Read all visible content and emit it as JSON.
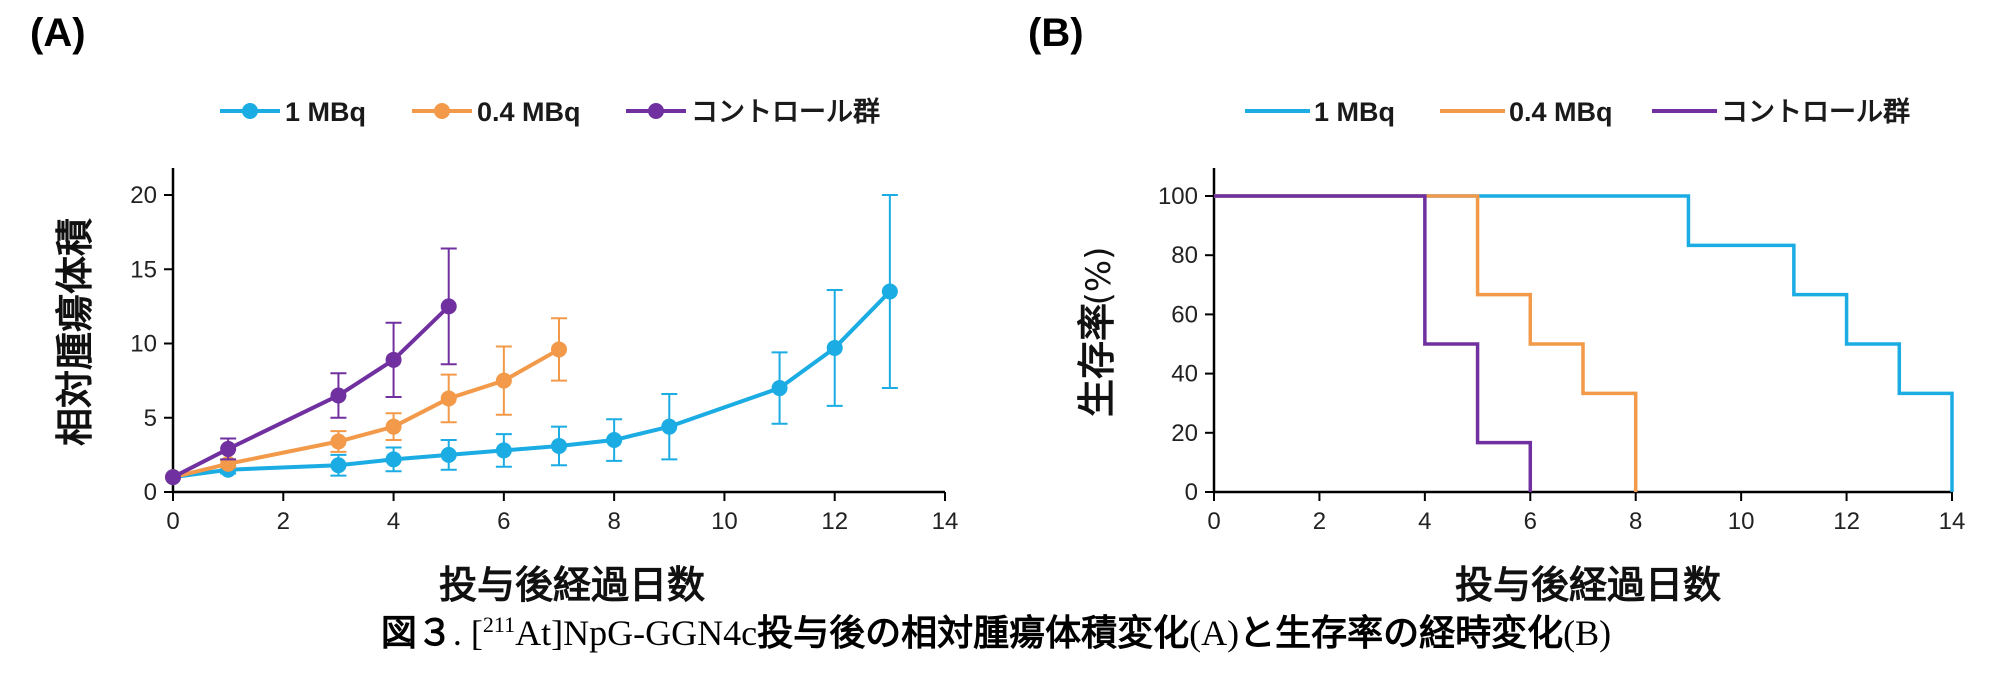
{
  "panel_a_label": "(A)",
  "panel_b_label": "(B)",
  "colors": {
    "1mbq": "#1aace3",
    "0_4mbq": "#f2994a",
    "control": "#7030a0"
  },
  "caption": {
    "fig_label": "図３",
    "dot": ".",
    "compound_pre": "[",
    "compound_sup": "211",
    "compound_post": "At]NpG-GGN4c",
    "text1": "投与後の相対腫瘍体積変化",
    "a": "(A)",
    "text2": "と生存率の経時変化",
    "b": "(B)"
  },
  "chart_data": [
    {
      "type": "line",
      "panel": "(A)",
      "xlabel": "投与後経過日数",
      "ylabel": "相対腫瘍体積",
      "xlim": [
        0,
        14
      ],
      "ylim": [
        0,
        20
      ],
      "xticks": [
        0,
        2,
        4,
        6,
        8,
        10,
        12,
        14
      ],
      "yticks": [
        0,
        5,
        10,
        15,
        20
      ],
      "grid": false,
      "legend": "top",
      "error_bars": true,
      "series": [
        {
          "name": "1 MBq",
          "color": "#1aace3",
          "x": [
            0,
            1,
            3,
            4,
            5,
            6,
            7,
            8,
            9,
            11,
            12,
            13
          ],
          "y": [
            1.0,
            1.5,
            1.8,
            2.2,
            2.5,
            2.8,
            3.1,
            3.5,
            4.4,
            7.0,
            9.7,
            13.5
          ],
          "err": [
            0,
            0.25,
            0.7,
            0.8,
            1.0,
            1.1,
            1.3,
            1.4,
            2.2,
            2.4,
            3.9,
            6.5
          ]
        },
        {
          "name": "0.4 MBq",
          "color": "#f2994a",
          "x": [
            0,
            1,
            3,
            4,
            5,
            6,
            7
          ],
          "y": [
            1.0,
            1.9,
            3.4,
            4.4,
            6.3,
            7.5,
            9.6
          ],
          "err": [
            0,
            0.25,
            0.7,
            0.9,
            1.6,
            2.3,
            2.1
          ]
        },
        {
          "name": "コントロール群",
          "color": "#7030a0",
          "x": [
            0,
            1,
            3,
            4,
            5
          ],
          "y": [
            1.0,
            2.9,
            6.5,
            8.9,
            12.5
          ],
          "err": [
            0,
            0.7,
            1.5,
            2.5,
            3.9
          ]
        }
      ]
    },
    {
      "type": "line",
      "panel": "(B)",
      "step": true,
      "xlabel": "投与後経過日数",
      "ylabel": "生存率",
      "ylabel_unit": "(%)",
      "xlim": [
        0,
        14
      ],
      "ylim": [
        0,
        100
      ],
      "xticks": [
        0,
        2,
        4,
        6,
        8,
        10,
        12,
        14
      ],
      "yticks": [
        0,
        20,
        40,
        60,
        80,
        100
      ],
      "grid": false,
      "legend": "top",
      "series": [
        {
          "name": "1 MBq",
          "color": "#1aace3",
          "x": [
            0,
            9,
            11,
            12,
            13,
            14
          ],
          "y": [
            100,
            83.3,
            66.7,
            50,
            33.3,
            0
          ]
        },
        {
          "name": "0.4 MBq",
          "color": "#f2994a",
          "x": [
            0,
            5,
            6,
            7,
            8
          ],
          "y": [
            100,
            66.7,
            50,
            33.3,
            0
          ]
        },
        {
          "name": "コントロール群",
          "color": "#7030a0",
          "x": [
            0,
            4,
            5,
            6
          ],
          "y": [
            100,
            50,
            16.7,
            0
          ]
        }
      ]
    }
  ]
}
